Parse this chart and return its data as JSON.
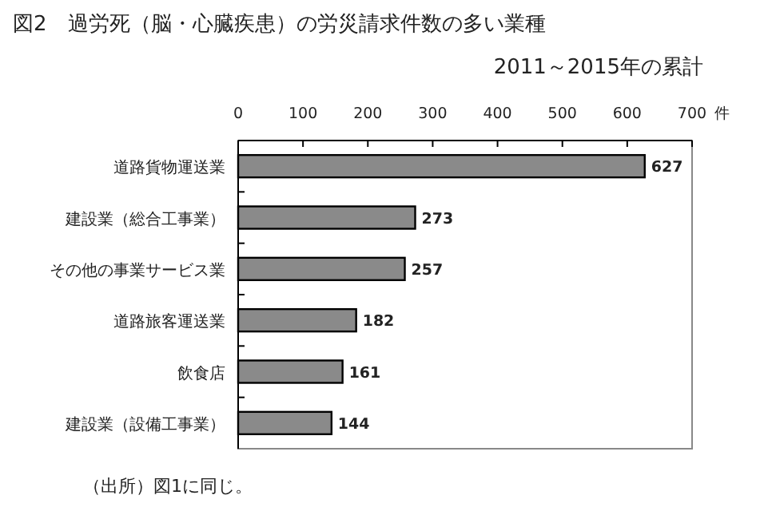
{
  "chart_data": {
    "type": "bar",
    "orientation": "horizontal",
    "title": "図2　過労死（脳・心臓疾患）の労災請求件数の多い業種",
    "subtitle": "2011～2015年の累計",
    "xlabel": "件",
    "categories": [
      "道路貨物運送業",
      "建設業（総合工事業）",
      "その他の事業サービス業",
      "道路旅客運送業",
      "飲食店",
      "建設業（設備工事業）"
    ],
    "values": [
      627,
      273,
      257,
      182,
      161,
      144
    ],
    "color": "#8a8a8a",
    "xlim": [
      0,
      700
    ],
    "xticks": [
      0,
      100,
      200,
      300,
      400,
      500,
      600,
      700
    ],
    "data_labels": true,
    "grid": false,
    "annotations": [
      "（出所）図1に同じ。"
    ]
  }
}
